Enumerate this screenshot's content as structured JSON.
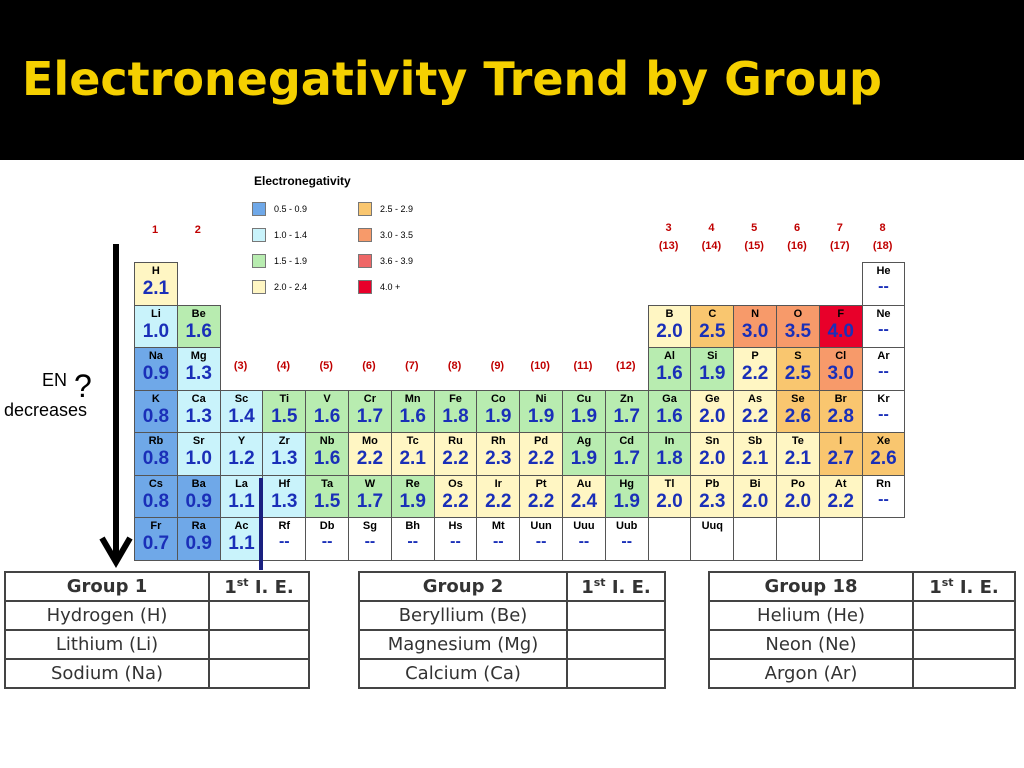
{
  "slide_title": "Electronegativity Trend by Group",
  "heading": "Electronegativity",
  "legend": [
    {
      "label": "0.5 - 0.9",
      "color": "#6fa8e8"
    },
    {
      "label": "1.0 - 1.4",
      "color": "#c9f3fb"
    },
    {
      "label": "1.5 - 1.9",
      "color": "#b8ecb0"
    },
    {
      "label": "2.0 - 2.4",
      "color": "#fff6c3"
    },
    {
      "label": "2.5 - 2.9",
      "color": "#f9c66f"
    },
    {
      "label": "3.0 - 3.5",
      "color": "#f79a6a"
    },
    {
      "label": "3.6 - 3.9",
      "color": "#ee6767"
    },
    {
      "label": "4.0 +",
      "color": "#e8002a"
    }
  ],
  "group_headers": [
    {
      "main": "1",
      "paren": ""
    },
    {
      "main": "2",
      "paren": ""
    },
    {
      "main": "",
      "paren": "(3)"
    },
    {
      "main": "",
      "paren": "(4)"
    },
    {
      "main": "",
      "paren": "(5)"
    },
    {
      "main": "",
      "paren": "(6)"
    },
    {
      "main": "",
      "paren": "(7)"
    },
    {
      "main": "",
      "paren": "(8)"
    },
    {
      "main": "",
      "paren": "(9)"
    },
    {
      "main": "",
      "paren": "(10)"
    },
    {
      "main": "",
      "paren": "(11)"
    },
    {
      "main": "",
      "paren": "(12)"
    },
    {
      "main": "3",
      "paren": "(13)"
    },
    {
      "main": "4",
      "paren": "(14)"
    },
    {
      "main": "5",
      "paren": "(15)"
    },
    {
      "main": "6",
      "paren": "(16)"
    },
    {
      "main": "7",
      "paren": "(17)"
    },
    {
      "main": "8",
      "paren": "(18)"
    }
  ],
  "elements": [
    {
      "sym": "H",
      "en": "2.1",
      "color": "#fff6c3"
    },
    {
      "sym": "He",
      "en": "--",
      "color": "#ffffff"
    },
    {
      "sym": "Li",
      "en": "1.0",
      "color": "#c9f3fb"
    },
    {
      "sym": "Be",
      "en": "1.6",
      "color": "#b8ecb0"
    },
    {
      "sym": "B",
      "en": "2.0",
      "color": "#fff6c3"
    },
    {
      "sym": "C",
      "en": "2.5",
      "color": "#f9c66f"
    },
    {
      "sym": "N",
      "en": "3.0",
      "color": "#f79a6a"
    },
    {
      "sym": "O",
      "en": "3.5",
      "color": "#f79a6a"
    },
    {
      "sym": "F",
      "en": "4.0",
      "color": "#e8002a"
    },
    {
      "sym": "Ne",
      "en": "--",
      "color": "#ffffff"
    },
    {
      "sym": "Na",
      "en": "0.9",
      "color": "#6fa8e8"
    },
    {
      "sym": "Mg",
      "en": "1.3",
      "color": "#c9f3fb"
    },
    {
      "sym": "Al",
      "en": "1.6",
      "color": "#b8ecb0"
    },
    {
      "sym": "Si",
      "en": "1.9",
      "color": "#b8ecb0"
    },
    {
      "sym": "P",
      "en": "2.2",
      "color": "#fff6c3"
    },
    {
      "sym": "S",
      "en": "2.5",
      "color": "#f9c66f"
    },
    {
      "sym": "Cl",
      "en": "3.0",
      "color": "#f79a6a"
    },
    {
      "sym": "Ar",
      "en": "--",
      "color": "#ffffff"
    },
    {
      "sym": "K",
      "en": "0.8",
      "color": "#6fa8e8"
    },
    {
      "sym": "Ca",
      "en": "1.3",
      "color": "#c9f3fb"
    },
    {
      "sym": "Sc",
      "en": "1.4",
      "color": "#c9f3fb"
    },
    {
      "sym": "Ti",
      "en": "1.5",
      "color": "#b8ecb0"
    },
    {
      "sym": "V",
      "en": "1.6",
      "color": "#b8ecb0"
    },
    {
      "sym": "Cr",
      "en": "1.7",
      "color": "#b8ecb0"
    },
    {
      "sym": "Mn",
      "en": "1.6",
      "color": "#b8ecb0"
    },
    {
      "sym": "Fe",
      "en": "1.8",
      "color": "#b8ecb0"
    },
    {
      "sym": "Co",
      "en": "1.9",
      "color": "#b8ecb0"
    },
    {
      "sym": "Ni",
      "en": "1.9",
      "color": "#b8ecb0"
    },
    {
      "sym": "Cu",
      "en": "1.9",
      "color": "#b8ecb0"
    },
    {
      "sym": "Zn",
      "en": "1.7",
      "color": "#b8ecb0"
    },
    {
      "sym": "Ga",
      "en": "1.6",
      "color": "#b8ecb0"
    },
    {
      "sym": "Ge",
      "en": "2.0",
      "color": "#fff6c3"
    },
    {
      "sym": "As",
      "en": "2.2",
      "color": "#fff6c3"
    },
    {
      "sym": "Se",
      "en": "2.6",
      "color": "#f9c66f"
    },
    {
      "sym": "Br",
      "en": "2.8",
      "color": "#f9c66f"
    },
    {
      "sym": "Kr",
      "en": "--",
      "color": "#ffffff"
    },
    {
      "sym": "Rb",
      "en": "0.8",
      "color": "#6fa8e8"
    },
    {
      "sym": "Sr",
      "en": "1.0",
      "color": "#c9f3fb"
    },
    {
      "sym": "Y",
      "en": "1.2",
      "color": "#c9f3fb"
    },
    {
      "sym": "Zr",
      "en": "1.3",
      "color": "#c9f3fb"
    },
    {
      "sym": "Nb",
      "en": "1.6",
      "color": "#b8ecb0"
    },
    {
      "sym": "Mo",
      "en": "2.2",
      "color": "#fff6c3"
    },
    {
      "sym": "Tc",
      "en": "2.1",
      "color": "#fff6c3"
    },
    {
      "sym": "Ru",
      "en": "2.2",
      "color": "#fff6c3"
    },
    {
      "sym": "Rh",
      "en": "2.3",
      "color": "#fff6c3"
    },
    {
      "sym": "Pd",
      "en": "2.2",
      "color": "#fff6c3"
    },
    {
      "sym": "Ag",
      "en": "1.9",
      "color": "#b8ecb0"
    },
    {
      "sym": "Cd",
      "en": "1.7",
      "color": "#b8ecb0"
    },
    {
      "sym": "In",
      "en": "1.8",
      "color": "#b8ecb0"
    },
    {
      "sym": "Sn",
      "en": "2.0",
      "color": "#fff6c3"
    },
    {
      "sym": "Sb",
      "en": "2.1",
      "color": "#fff6c3"
    },
    {
      "sym": "Te",
      "en": "2.1",
      "color": "#fff6c3"
    },
    {
      "sym": "I",
      "en": "2.7",
      "color": "#f9c66f"
    },
    {
      "sym": "Xe",
      "en": "2.6",
      "color": "#f9c66f"
    },
    {
      "sym": "Cs",
      "en": "0.8",
      "color": "#6fa8e8"
    },
    {
      "sym": "Ba",
      "en": "0.9",
      "color": "#6fa8e8"
    },
    {
      "sym": "La",
      "en": "1.1",
      "color": "#c9f3fb"
    },
    {
      "sym": "Hf",
      "en": "1.3",
      "color": "#c9f3fb"
    },
    {
      "sym": "Ta",
      "en": "1.5",
      "color": "#b8ecb0"
    },
    {
      "sym": "W",
      "en": "1.7",
      "color": "#b8ecb0"
    },
    {
      "sym": "Re",
      "en": "1.9",
      "color": "#b8ecb0"
    },
    {
      "sym": "Os",
      "en": "2.2",
      "color": "#fff6c3"
    },
    {
      "sym": "Ir",
      "en": "2.2",
      "color": "#fff6c3"
    },
    {
      "sym": "Pt",
      "en": "2.2",
      "color": "#fff6c3"
    },
    {
      "sym": "Au",
      "en": "2.4",
      "color": "#fff6c3"
    },
    {
      "sym": "Hg",
      "en": "1.9",
      "color": "#b8ecb0"
    },
    {
      "sym": "Tl",
      "en": "2.0",
      "color": "#fff6c3"
    },
    {
      "sym": "Pb",
      "en": "2.3",
      "color": "#fff6c3"
    },
    {
      "sym": "Bi",
      "en": "2.0",
      "color": "#fff6c3"
    },
    {
      "sym": "Po",
      "en": "2.0",
      "color": "#fff6c3"
    },
    {
      "sym": "At",
      "en": "2.2",
      "color": "#fff6c3"
    },
    {
      "sym": "Rn",
      "en": "--",
      "color": "#ffffff"
    },
    {
      "sym": "Fr",
      "en": "0.7",
      "color": "#6fa8e8"
    },
    {
      "sym": "Ra",
      "en": "0.9",
      "color": "#6fa8e8"
    },
    {
      "sym": "Ac",
      "en": "1.1",
      "color": "#c9f3fb"
    },
    {
      "sym": "Rf",
      "en": "--",
      "color": "#ffffff"
    },
    {
      "sym": "Db",
      "en": "--",
      "color": "#ffffff"
    },
    {
      "sym": "Sg",
      "en": "--",
      "color": "#ffffff"
    },
    {
      "sym": "Bh",
      "en": "--",
      "color": "#ffffff"
    },
    {
      "sym": "Hs",
      "en": "--",
      "color": "#ffffff"
    },
    {
      "sym": "Mt",
      "en": "--",
      "color": "#ffffff"
    },
    {
      "sym": "Uun",
      "en": "--",
      "color": "#ffffff"
    },
    {
      "sym": "Uuu",
      "en": "--",
      "color": "#ffffff"
    },
    {
      "sym": "Uub",
      "en": "--",
      "color": "#ffffff"
    },
    {
      "sym": "",
      "en": "",
      "color": "#ffffff"
    },
    {
      "sym": "Uuq",
      "en": "",
      "color": "#ffffff"
    },
    {
      "sym": "",
      "en": "",
      "color": "#ffffff"
    },
    {
      "sym": "",
      "en": "",
      "color": "#ffffff"
    },
    {
      "sym": "",
      "en": "",
      "color": "#ffffff"
    }
  ],
  "trend_label": {
    "line1": "EN",
    "line2": "decreases",
    "question": "?"
  },
  "tables": [
    {
      "group": "Group 1",
      "ie_main": "1",
      "ie_sup": "st",
      "ie_rest": " I. E.",
      "rows": [
        "Hydrogen (H)",
        "Lithium (Li)",
        "Sodium (Na)"
      ]
    },
    {
      "group": "Group 2",
      "ie_main": "1",
      "ie_sup": "st",
      "ie_rest": " I. E.",
      "rows": [
        "Beryllium (Be)",
        "Magnesium (Mg)",
        "Calcium (Ca)"
      ]
    },
    {
      "group": "Group 18",
      "ie_main": "1",
      "ie_sup": "st",
      "ie_rest": " I. E.",
      "rows": [
        "Helium (He)",
        "Neon (Ne)",
        "Argon (Ar)"
      ]
    }
  ]
}
